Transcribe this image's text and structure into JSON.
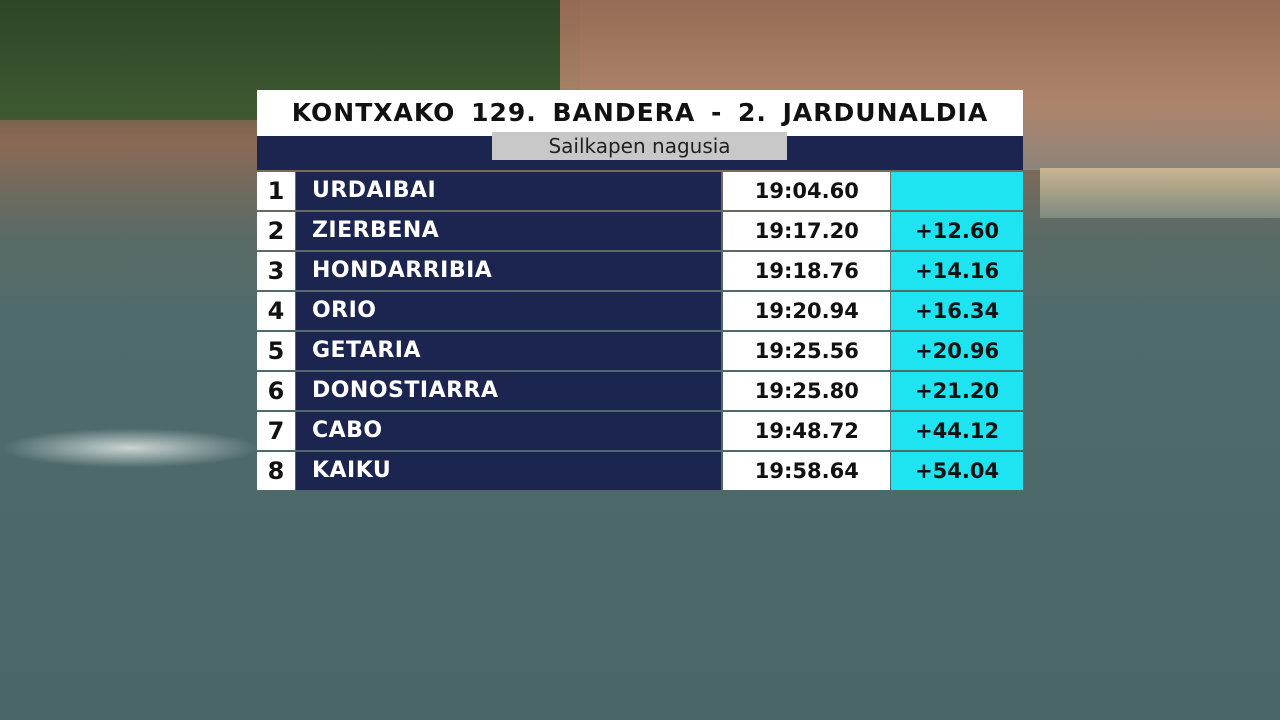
{
  "title": "KONTXAKO 129. BANDERA - 2. JARDUNALDIA",
  "subtitle": "Sailkapen nagusia",
  "colors": {
    "navy": "#1c2550",
    "cyan": "#1ee3f0",
    "white": "#ffffff",
    "gray": "#c8c8c8"
  },
  "standings": [
    {
      "pos": "1",
      "team": "URDAIBAI",
      "time": "19:04.60",
      "gap": ""
    },
    {
      "pos": "2",
      "team": "ZIERBENA",
      "time": "19:17.20",
      "gap": "+12.60"
    },
    {
      "pos": "3",
      "team": "HONDARRIBIA",
      "time": "19:18.76",
      "gap": "+14.16"
    },
    {
      "pos": "4",
      "team": "ORIO",
      "time": "19:20.94",
      "gap": "+16.34"
    },
    {
      "pos": "5",
      "team": "GETARIA",
      "time": "19:25.56",
      "gap": "+20.96"
    },
    {
      "pos": "6",
      "team": "DONOSTIARRA",
      "time": "19:25.80",
      "gap": "+21.20"
    },
    {
      "pos": "7",
      "team": "CABO",
      "time": "19:48.72",
      "gap": "+44.12"
    },
    {
      "pos": "8",
      "team": "KAIKU",
      "time": "19:58.64",
      "gap": "+54.04"
    }
  ]
}
